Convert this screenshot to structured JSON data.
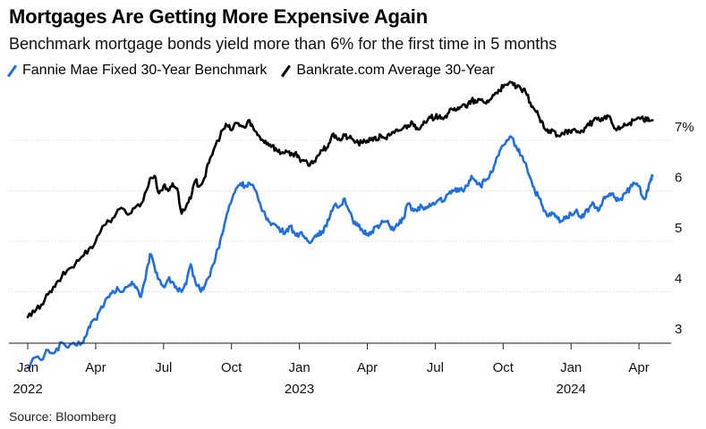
{
  "title": "Mortgages Are Getting More Expensive Again",
  "subtitle": "Benchmark mortgage bonds yield more than 6% for the first time in 5 months",
  "source": "Source: Bloomberg",
  "chart_data": {
    "type": "line",
    "ylim": [
      2.3,
      7.9
    ],
    "y_ticks": [
      {
        "value": 7,
        "label": "7%"
      },
      {
        "value": 6,
        "label": "6"
      },
      {
        "value": 5,
        "label": "5"
      },
      {
        "value": 4,
        "label": "4"
      },
      {
        "value": 3,
        "label": "3"
      }
    ],
    "x_ticks": [
      {
        "t": 0,
        "label": "Jan",
        "year": "2022"
      },
      {
        "t": 3,
        "label": "Apr"
      },
      {
        "t": 6,
        "label": "Jul"
      },
      {
        "t": 9,
        "label": "Oct"
      },
      {
        "t": 12,
        "label": "Jan",
        "year": "2023"
      },
      {
        "t": 15,
        "label": "Apr"
      },
      {
        "t": 18,
        "label": "Jul"
      },
      {
        "t": 21,
        "label": "Oct"
      },
      {
        "t": 24,
        "label": "Jan",
        "year": "2024"
      },
      {
        "t": 27,
        "label": "Apr"
      }
    ],
    "grid": true,
    "legend": "top-left",
    "series": [
      {
        "name": "Fannie Mae Fixed 30-Year Benchmark",
        "color": "#1f6fe0",
        "points": [
          [
            0.0,
            2.25
          ],
          [
            0.3,
            2.45
          ],
          [
            0.6,
            2.4
          ],
          [
            0.9,
            2.6
          ],
          [
            1.2,
            2.55
          ],
          [
            1.5,
            2.75
          ],
          [
            1.8,
            2.65
          ],
          [
            2.1,
            2.7
          ],
          [
            2.4,
            2.75
          ],
          [
            2.6,
            2.9
          ],
          [
            2.8,
            3.15
          ],
          [
            3.0,
            3.2
          ],
          [
            3.2,
            3.4
          ],
          [
            3.4,
            3.55
          ],
          [
            3.6,
            3.65
          ],
          [
            3.8,
            3.75
          ],
          [
            4.0,
            3.8
          ],
          [
            4.2,
            3.75
          ],
          [
            4.4,
            3.85
          ],
          [
            4.6,
            3.95
          ],
          [
            4.8,
            3.85
          ],
          [
            5.0,
            3.65
          ],
          [
            5.2,
            4.0
          ],
          [
            5.4,
            4.5
          ],
          [
            5.6,
            4.25
          ],
          [
            5.8,
            4.0
          ],
          [
            6.0,
            3.85
          ],
          [
            6.2,
            4.0
          ],
          [
            6.4,
            3.95
          ],
          [
            6.6,
            3.8
          ],
          [
            6.8,
            3.75
          ],
          [
            7.0,
            3.9
          ],
          [
            7.2,
            4.3
          ],
          [
            7.4,
            3.95
          ],
          [
            7.6,
            3.8
          ],
          [
            7.8,
            3.85
          ],
          [
            8.0,
            4.05
          ],
          [
            8.2,
            4.3
          ],
          [
            8.4,
            4.6
          ],
          [
            8.6,
            4.9
          ],
          [
            8.8,
            5.3
          ],
          [
            9.0,
            5.55
          ],
          [
            9.2,
            5.8
          ],
          [
            9.4,
            5.9
          ],
          [
            9.6,
            5.85
          ],
          [
            9.8,
            5.9
          ],
          [
            10.0,
            5.8
          ],
          [
            10.2,
            5.55
          ],
          [
            10.4,
            5.35
          ],
          [
            10.6,
            5.2
          ],
          [
            10.8,
            5.1
          ],
          [
            11.0,
            5.05
          ],
          [
            11.2,
            4.95
          ],
          [
            11.4,
            4.95
          ],
          [
            11.6,
            5.05
          ],
          [
            11.8,
            4.9
          ],
          [
            12.0,
            4.9
          ],
          [
            12.2,
            4.85
          ],
          [
            12.4,
            4.75
          ],
          [
            12.6,
            4.8
          ],
          [
            12.8,
            4.9
          ],
          [
            13.0,
            4.95
          ],
          [
            13.2,
            5.05
          ],
          [
            13.4,
            5.35
          ],
          [
            13.6,
            5.5
          ],
          [
            13.8,
            5.45
          ],
          [
            14.0,
            5.6
          ],
          [
            14.2,
            5.35
          ],
          [
            14.4,
            5.1
          ],
          [
            14.6,
            5.05
          ],
          [
            14.8,
            4.95
          ],
          [
            15.0,
            4.9
          ],
          [
            15.2,
            4.95
          ],
          [
            15.4,
            5.05
          ],
          [
            15.6,
            5.1
          ],
          [
            15.8,
            5.15
          ],
          [
            16.0,
            5.05
          ],
          [
            16.2,
            5.0
          ],
          [
            16.4,
            5.1
          ],
          [
            16.6,
            5.2
          ],
          [
            16.8,
            5.5
          ],
          [
            17.0,
            5.4
          ],
          [
            17.2,
            5.35
          ],
          [
            17.4,
            5.45
          ],
          [
            17.6,
            5.4
          ],
          [
            17.8,
            5.45
          ],
          [
            18.0,
            5.5
          ],
          [
            18.2,
            5.6
          ],
          [
            18.4,
            5.55
          ],
          [
            18.6,
            5.7
          ],
          [
            18.8,
            5.75
          ],
          [
            19.0,
            5.8
          ],
          [
            19.2,
            5.75
          ],
          [
            19.4,
            5.85
          ],
          [
            19.6,
            6.05
          ],
          [
            19.8,
            5.95
          ],
          [
            20.0,
            5.85
          ],
          [
            20.2,
            5.95
          ],
          [
            20.4,
            6.05
          ],
          [
            20.6,
            6.25
          ],
          [
            20.8,
            6.45
          ],
          [
            21.0,
            6.65
          ],
          [
            21.2,
            6.75
          ],
          [
            21.4,
            6.8
          ],
          [
            21.6,
            6.6
          ],
          [
            21.8,
            6.45
          ],
          [
            22.0,
            6.3
          ],
          [
            22.2,
            6.0
          ],
          [
            22.4,
            5.75
          ],
          [
            22.6,
            5.6
          ],
          [
            22.8,
            5.35
          ],
          [
            23.0,
            5.25
          ],
          [
            23.2,
            5.3
          ],
          [
            23.4,
            5.2
          ],
          [
            23.6,
            5.15
          ],
          [
            23.8,
            5.25
          ],
          [
            24.0,
            5.3
          ],
          [
            24.2,
            5.35
          ],
          [
            24.4,
            5.25
          ],
          [
            24.6,
            5.3
          ],
          [
            24.8,
            5.4
          ],
          [
            25.0,
            5.5
          ],
          [
            25.2,
            5.35
          ],
          [
            25.4,
            5.55
          ],
          [
            25.6,
            5.65
          ],
          [
            25.8,
            5.7
          ],
          [
            26.0,
            5.55
          ],
          [
            26.2,
            5.6
          ],
          [
            26.4,
            5.7
          ],
          [
            26.6,
            5.8
          ],
          [
            26.8,
            5.9
          ],
          [
            27.0,
            5.85
          ],
          [
            27.2,
            5.6
          ],
          [
            27.4,
            5.75
          ],
          [
            27.5,
            5.95
          ],
          [
            27.6,
            6.05
          ]
        ]
      },
      {
        "name": "Bankrate.com Average 30-Year",
        "color": "#000000",
        "points": [
          [
            0.0,
            3.25
          ],
          [
            0.3,
            3.35
          ],
          [
            0.6,
            3.5
          ],
          [
            0.9,
            3.7
          ],
          [
            1.2,
            3.85
          ],
          [
            1.5,
            4.05
          ],
          [
            1.8,
            4.2
          ],
          [
            2.1,
            4.3
          ],
          [
            2.4,
            4.45
          ],
          [
            2.7,
            4.6
          ],
          [
            3.0,
            4.75
          ],
          [
            3.3,
            5.05
          ],
          [
            3.6,
            5.15
          ],
          [
            3.9,
            5.3
          ],
          [
            4.2,
            5.4
          ],
          [
            4.5,
            5.3
          ],
          [
            4.8,
            5.45
          ],
          [
            5.1,
            5.55
          ],
          [
            5.4,
            6.0
          ],
          [
            5.6,
            6.05
          ],
          [
            5.8,
            5.7
          ],
          [
            6.0,
            5.85
          ],
          [
            6.2,
            5.75
          ],
          [
            6.4,
            5.9
          ],
          [
            6.6,
            5.8
          ],
          [
            6.8,
            5.3
          ],
          [
            7.0,
            5.45
          ],
          [
            7.2,
            5.6
          ],
          [
            7.4,
            5.95
          ],
          [
            7.6,
            5.85
          ],
          [
            7.8,
            6.0
          ],
          [
            8.0,
            6.3
          ],
          [
            8.2,
            6.55
          ],
          [
            8.4,
            6.75
          ],
          [
            8.6,
            6.95
          ],
          [
            8.8,
            7.05
          ],
          [
            9.0,
            6.95
          ],
          [
            9.2,
            7.1
          ],
          [
            9.4,
            7.05
          ],
          [
            9.6,
            7.0
          ],
          [
            9.8,
            7.15
          ],
          [
            10.0,
            6.95
          ],
          [
            10.2,
            6.85
          ],
          [
            10.4,
            6.75
          ],
          [
            10.6,
            6.7
          ],
          [
            10.8,
            6.65
          ],
          [
            11.0,
            6.55
          ],
          [
            11.2,
            6.5
          ],
          [
            11.4,
            6.55
          ],
          [
            11.6,
            6.45
          ],
          [
            11.8,
            6.5
          ],
          [
            12.0,
            6.4
          ],
          [
            12.2,
            6.35
          ],
          [
            12.4,
            6.25
          ],
          [
            12.6,
            6.3
          ],
          [
            12.8,
            6.45
          ],
          [
            13.0,
            6.55
          ],
          [
            13.2,
            6.6
          ],
          [
            13.4,
            6.8
          ],
          [
            13.6,
            6.85
          ],
          [
            13.8,
            6.75
          ],
          [
            14.0,
            6.85
          ],
          [
            14.2,
            6.8
          ],
          [
            14.4,
            6.75
          ],
          [
            14.6,
            6.7
          ],
          [
            14.8,
            6.7
          ],
          [
            15.0,
            6.75
          ],
          [
            15.2,
            6.8
          ],
          [
            15.4,
            6.75
          ],
          [
            15.6,
            6.85
          ],
          [
            15.8,
            6.8
          ],
          [
            16.0,
            6.85
          ],
          [
            16.2,
            6.9
          ],
          [
            16.4,
            6.95
          ],
          [
            16.6,
            7.0
          ],
          [
            16.8,
            7.05
          ],
          [
            17.0,
            7.1
          ],
          [
            17.2,
            7.0
          ],
          [
            17.4,
            7.05
          ],
          [
            17.6,
            7.1
          ],
          [
            17.8,
            7.2
          ],
          [
            18.0,
            7.2
          ],
          [
            18.2,
            7.25
          ],
          [
            18.4,
            7.2
          ],
          [
            18.6,
            7.3
          ],
          [
            18.8,
            7.35
          ],
          [
            19.0,
            7.4
          ],
          [
            19.2,
            7.45
          ],
          [
            19.4,
            7.4
          ],
          [
            19.6,
            7.55
          ],
          [
            19.8,
            7.5
          ],
          [
            20.0,
            7.55
          ],
          [
            20.2,
            7.5
          ],
          [
            20.4,
            7.55
          ],
          [
            20.6,
            7.65
          ],
          [
            20.8,
            7.75
          ],
          [
            21.0,
            7.8
          ],
          [
            21.2,
            7.85
          ],
          [
            21.4,
            7.9
          ],
          [
            21.6,
            7.8
          ],
          [
            21.8,
            7.75
          ],
          [
            22.0,
            7.7
          ],
          [
            22.2,
            7.5
          ],
          [
            22.4,
            7.35
          ],
          [
            22.6,
            7.2
          ],
          [
            22.8,
            7.0
          ],
          [
            23.0,
            6.9
          ],
          [
            23.2,
            6.95
          ],
          [
            23.4,
            6.85
          ],
          [
            23.6,
            6.9
          ],
          [
            23.8,
            6.95
          ],
          [
            24.0,
            6.9
          ],
          [
            24.2,
            6.95
          ],
          [
            24.4,
            6.9
          ],
          [
            24.6,
            7.0
          ],
          [
            24.8,
            7.05
          ],
          [
            25.0,
            7.15
          ],
          [
            25.2,
            7.2
          ],
          [
            25.4,
            7.15
          ],
          [
            25.6,
            7.25
          ],
          [
            25.8,
            7.1
          ],
          [
            26.0,
            6.95
          ],
          [
            26.2,
            7.0
          ],
          [
            26.4,
            7.05
          ],
          [
            26.6,
            7.1
          ],
          [
            26.8,
            7.15
          ],
          [
            27.0,
            7.2
          ],
          [
            27.2,
            7.15
          ],
          [
            27.4,
            7.2
          ],
          [
            27.6,
            7.15
          ]
        ]
      }
    ]
  }
}
